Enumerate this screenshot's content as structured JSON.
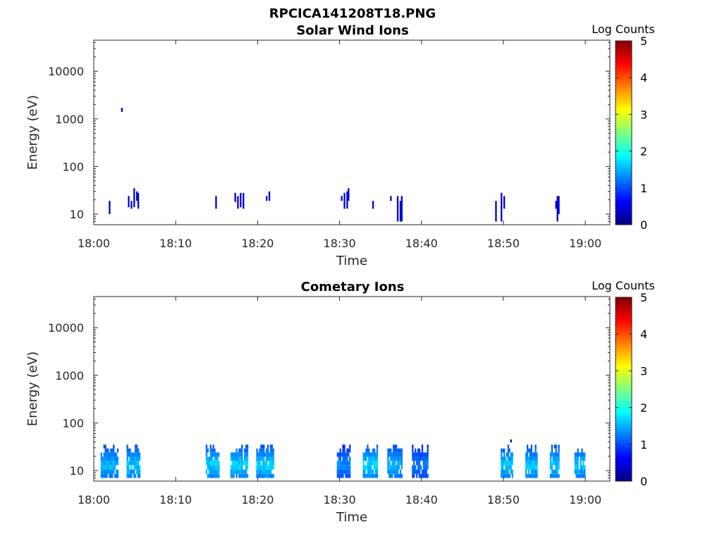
{
  "figure_title": "RPCICA141208T18.PNG",
  "colorscale": [
    "#00007f",
    "#0000ff",
    "#007fff",
    "#00ffff",
    "#7fff7f",
    "#ffff00",
    "#ff7f00",
    "#ff0000",
    "#7f0000"
  ],
  "chart_data": [
    {
      "type": "heatmap",
      "title": "Solar Wind Ions",
      "xlabel": "Time",
      "ylabel": "Energy (eV)",
      "y_scale": "log",
      "ylim": [
        6,
        45000
      ],
      "xlim": [
        "18:00",
        "19:03"
      ],
      "x_ticks": [
        "18:00",
        "18:10",
        "18:20",
        "18:30",
        "18:40",
        "18:50",
        "19:00"
      ],
      "y_ticks": [
        "10",
        "100",
        "1000",
        "10000"
      ],
      "colorbar": {
        "label": "Log Counts",
        "range": [
          0,
          5
        ],
        "ticks": [
          "0",
          "1",
          "2",
          "3",
          "4",
          "5"
        ]
      },
      "cells": [
        [
          "18:01:50",
          10,
          19,
          0.3
        ],
        [
          "18:03:20",
          1400,
          1700,
          0.3
        ],
        [
          "18:04:10",
          14,
          24,
          0.4
        ],
        [
          "18:04:30",
          13,
          19,
          0.4
        ],
        [
          "18:04:50",
          14,
          35,
          0.4
        ],
        [
          "18:05:10",
          19,
          30,
          0.4
        ],
        [
          "18:05:20",
          13,
          28,
          0.4
        ],
        [
          "18:14:50",
          13,
          24,
          0.4
        ],
        [
          "18:17:10",
          18,
          28,
          0.4
        ],
        [
          "18:17:30",
          13,
          24,
          0.4
        ],
        [
          "18:17:50",
          14,
          28,
          0.4
        ],
        [
          "18:18:10",
          13,
          28,
          0.4
        ],
        [
          "18:21:00",
          19,
          24,
          0.4
        ],
        [
          "18:21:20",
          19,
          30,
          0.4
        ],
        [
          "18:30:10",
          19,
          24,
          0.4
        ],
        [
          "18:30:30",
          13,
          28,
          0.4
        ],
        [
          "18:30:50",
          13,
          30,
          0.4
        ],
        [
          "18:31:00",
          19,
          35,
          0.4
        ],
        [
          "18:34:00",
          13,
          19,
          0.4
        ],
        [
          "18:36:10",
          19,
          24,
          0.4
        ],
        [
          "18:37:00",
          7,
          24,
          0.4
        ],
        [
          "18:37:20",
          7,
          19,
          0.4
        ],
        [
          "18:37:30",
          7,
          24,
          0.4
        ],
        [
          "18:49:00",
          7,
          19,
          0.4
        ],
        [
          "18:49:40",
          7,
          28,
          0.4
        ],
        [
          "18:50:00",
          13,
          24,
          0.4
        ],
        [
          "18:56:20",
          13,
          19,
          0.4
        ],
        [
          "18:56:30",
          7,
          24,
          0.4
        ],
        [
          "18:56:40",
          10,
          24,
          0.4
        ]
      ]
    },
    {
      "type": "heatmap",
      "title": "Cometary Ions",
      "xlabel": "Time",
      "ylabel": "Energy (eV)",
      "y_scale": "log",
      "ylim": [
        6,
        45000
      ],
      "xlim": [
        "18:00",
        "19:03"
      ],
      "x_ticks": [
        "18:00",
        "18:10",
        "18:20",
        "18:30",
        "18:40",
        "18:50",
        "19:00"
      ],
      "y_ticks": [
        "10",
        "100",
        "1000",
        "10000"
      ],
      "colorbar": {
        "label": "Log Counts",
        "range": [
          0,
          5
        ],
        "ticks": [
          "0",
          "1",
          "2",
          "3",
          "4",
          "5"
        ]
      },
      "blocks": [
        [
          "18:00:50",
          "18:03:00",
          0.9,
          1.7
        ],
        [
          "18:04:00",
          "18:05:40",
          0.9,
          1.8
        ],
        [
          "18:13:40",
          "18:15:20",
          0.9,
          1.9
        ],
        [
          "18:16:40",
          "18:18:50",
          0.9,
          1.9
        ],
        [
          "18:19:50",
          "18:22:00",
          0.9,
          1.9
        ],
        [
          "18:29:40",
          "18:31:20",
          0.7,
          1.5
        ],
        [
          "18:32:50",
          "18:34:40",
          0.9,
          1.9
        ],
        [
          "18:35:50",
          "18:37:40",
          0.9,
          1.7
        ],
        [
          "18:38:50",
          "18:40:50",
          0.7,
          1.4
        ],
        [
          "18:49:40",
          "18:51:10",
          0.9,
          1.8
        ],
        [
          "18:52:40",
          "18:54:10",
          0.9,
          1.8
        ],
        [
          "18:55:40",
          "18:56:50",
          0.9,
          1.8
        ],
        [
          "18:58:40",
          "19:00:00",
          0.9,
          1.8
        ]
      ],
      "cells": [
        [
          "18:50:50",
          39,
          45,
          0.3
        ]
      ]
    }
  ]
}
